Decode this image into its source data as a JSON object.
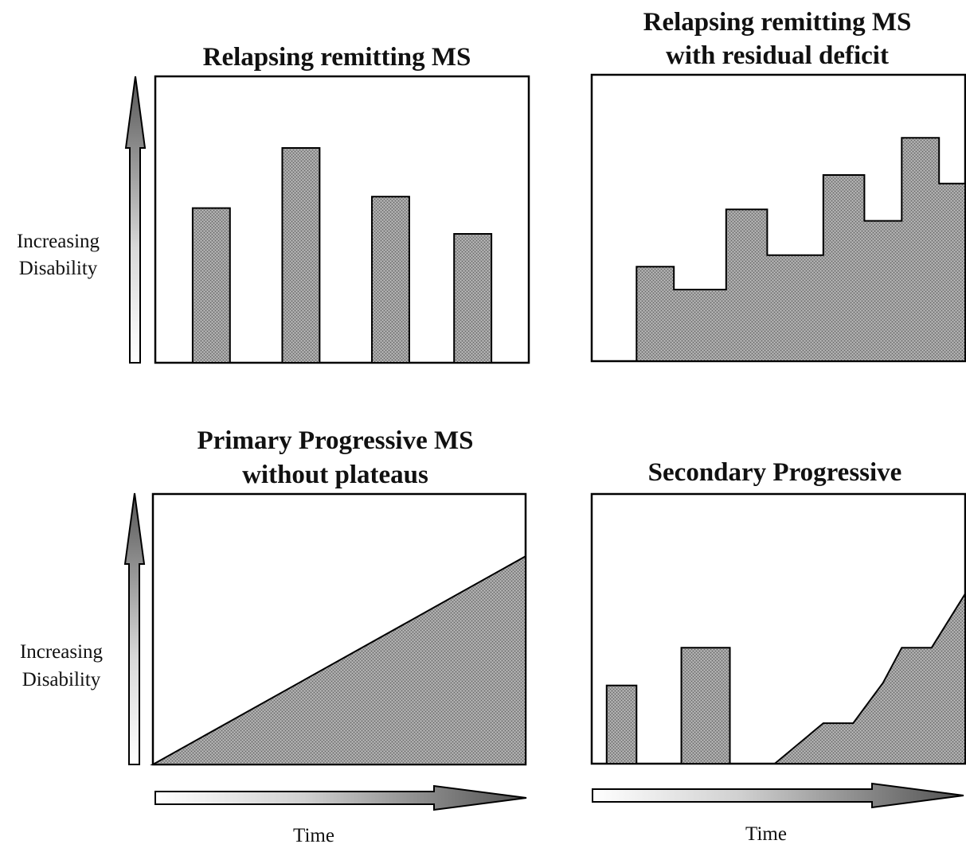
{
  "panels": {
    "rr": {
      "title_lines": [
        "Relapsing remitting MS"
      ],
      "shape": "bars",
      "x": [
        0,
        100
      ],
      "y": [
        0,
        100
      ],
      "bars": [
        {
          "from": 10,
          "to": 20,
          "height": 54
        },
        {
          "from": 34,
          "to": 44,
          "height": 75
        },
        {
          "from": 58,
          "to": 68,
          "height": 58
        },
        {
          "from": 80,
          "to": 90,
          "height": 45
        }
      ]
    },
    "rrd": {
      "title_lines": [
        "Relapsing remitting MS",
        "with residual deficit"
      ],
      "shape": "steps",
      "x": [
        0,
        100
      ],
      "y": [
        0,
        100
      ],
      "profile": [
        [
          12,
          0
        ],
        [
          12,
          33
        ],
        [
          22,
          33
        ],
        [
          22,
          25
        ],
        [
          36,
          25
        ],
        [
          36,
          53
        ],
        [
          47,
          53
        ],
        [
          47,
          37
        ],
        [
          62,
          37
        ],
        [
          62,
          65
        ],
        [
          73,
          65
        ],
        [
          73,
          49
        ],
        [
          83,
          49
        ],
        [
          83,
          78
        ],
        [
          93,
          78
        ],
        [
          93,
          62
        ],
        [
          100,
          62
        ],
        [
          100,
          0
        ]
      ]
    },
    "pp": {
      "title_lines": [
        "Primary Progressive MS",
        "without plateaus"
      ],
      "shape": "area",
      "x": [
        0,
        100
      ],
      "y": [
        0,
        100
      ],
      "profile": [
        [
          0,
          0
        ],
        [
          100,
          77
        ],
        [
          100,
          0
        ]
      ]
    },
    "sp": {
      "title_lines": [
        "Secondary Progressive"
      ],
      "shape": "mixed",
      "x": [
        0,
        100
      ],
      "y": [
        0,
        100
      ],
      "bars": [
        {
          "from": 4,
          "to": 12,
          "height": 29
        },
        {
          "from": 24,
          "to": 37,
          "height": 43
        }
      ],
      "profile": [
        [
          49,
          0
        ],
        [
          62,
          15
        ],
        [
          70,
          15
        ],
        [
          78,
          30
        ],
        [
          83,
          43
        ],
        [
          91,
          43
        ],
        [
          100,
          63
        ],
        [
          100,
          0
        ]
      ]
    }
  },
  "axes": {
    "y_label_lines": [
      "Increasing",
      "Disability"
    ],
    "x_label": "Time"
  }
}
